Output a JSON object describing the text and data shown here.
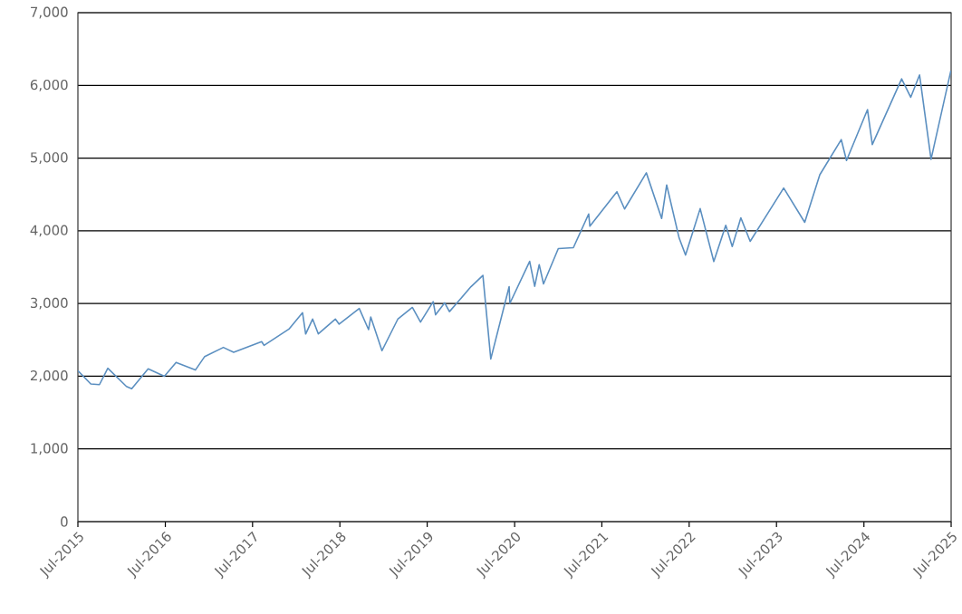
{
  "chart_data": {
    "type": "line",
    "x": [
      "2015-07-01",
      "2015-08-24",
      "2015-09-29",
      "2015-11-03",
      "2016-01-20",
      "2016-02-11",
      "2016-04-20",
      "2016-06-27",
      "2016-08-15",
      "2016-11-04",
      "2016-12-13",
      "2017-03-01",
      "2017-04-13",
      "2017-08-08",
      "2017-08-18",
      "2017-11-30",
      "2018-01-26",
      "2018-02-08",
      "2018-03-09",
      "2018-04-02",
      "2018-06-12",
      "2018-06-28",
      "2018-09-20",
      "2018-10-29",
      "2018-11-07",
      "2018-12-24",
      "2019-02-28",
      "2019-04-30",
      "2019-06-03",
      "2019-07-26",
      "2019-08-05",
      "2019-09-12",
      "2019-10-02",
      "2019-12-31",
      "2020-02-19",
      "2020-03-23",
      "2020-06-08",
      "2020-06-11",
      "2020-09-02",
      "2020-09-23",
      "2020-10-12",
      "2020-10-30",
      "2020-12-31",
      "2021-03-04",
      "2021-05-07",
      "2021-05-12",
      "2021-09-02",
      "2021-10-04",
      "2022-01-03",
      "2022-03-08",
      "2022-03-29",
      "2022-05-20",
      "2022-06-16",
      "2022-08-16",
      "2022-10-12",
      "2022-12-01",
      "2022-12-28",
      "2023-02-02",
      "2023-03-13",
      "2023-07-31",
      "2023-10-27",
      "2023-12-29",
      "2024-03-28",
      "2024-04-19",
      "2024-07-16",
      "2024-08-05",
      "2024-12-06",
      "2025-01-13",
      "2025-02-19",
      "2025-04-08",
      "2025-06-30"
    ],
    "series": [
      {
        "color": "#5b8fc0",
        "values": [
          2077,
          1893,
          1884,
          2109,
          1859,
          1829,
          2102,
          2000,
          2190,
          2085,
          2271,
          2396,
          2329,
          2475,
          2425,
          2648,
          2873,
          2581,
          2786,
          2582,
          2786,
          2716,
          2931,
          2641,
          2814,
          2351,
          2784,
          2946,
          2744,
          3026,
          2845,
          3009,
          2888,
          3231,
          3386,
          2237,
          3232,
          3002,
          3580,
          3237,
          3535,
          3270,
          3756,
          3768,
          4232,
          4063,
          4537,
          4300,
          4797,
          4170,
          4631,
          3901,
          3667,
          4305,
          3577,
          4076,
          3783,
          4179,
          3855,
          4589,
          4117,
          4770,
          5254,
          4967,
          5667,
          5186,
          6090,
          5836,
          6144,
          4983,
          6205
        ]
      }
    ],
    "xlim": [
      "2015-07",
      "2025-07"
    ],
    "xticks": [
      {
        "value": "2015-07",
        "label": "Jul-2015"
      },
      {
        "value": "2016-07",
        "label": "Jul-2016"
      },
      {
        "value": "2017-07",
        "label": "Jul-2017"
      },
      {
        "value": "2018-07",
        "label": "Jul-2018"
      },
      {
        "value": "2019-07",
        "label": "Jul-2019"
      },
      {
        "value": "2020-07",
        "label": "Jul-2020"
      },
      {
        "value": "2021-07",
        "label": "Jul-2021"
      },
      {
        "value": "2022-07",
        "label": "Jul-2022"
      },
      {
        "value": "2023-07",
        "label": "Jul-2023"
      },
      {
        "value": "2024-07",
        "label": "Jul-2024"
      },
      {
        "value": "2025-07",
        "label": "Jul-2025"
      }
    ],
    "ylim": [
      0,
      7000
    ],
    "yticks": [
      {
        "value": 0,
        "label": "0"
      },
      {
        "value": 1000,
        "label": "1,000"
      },
      {
        "value": 2000,
        "label": "2,000"
      },
      {
        "value": 3000,
        "label": "3,000"
      },
      {
        "value": 4000,
        "label": "4,000"
      },
      {
        "value": 5000,
        "label": "5,000"
      },
      {
        "value": 6000,
        "label": "6,000"
      },
      {
        "value": 7000,
        "label": "7,000"
      }
    ],
    "grid": "y"
  }
}
